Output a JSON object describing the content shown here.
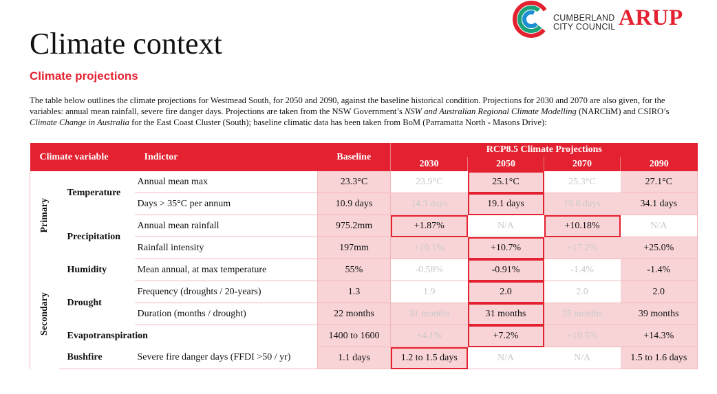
{
  "header": {
    "title": "Climate context",
    "subtitle": "Climate projections",
    "council_line1": "CUMBERLAND",
    "council_line2": "CITY COUNCIL",
    "arup": "ARUP"
  },
  "intro": {
    "p1": "The table below outlines the climate projections for Westmead South, for 2050 and 2090, against the baseline historical condition. Projections for 2030 and 2070 are also given, for the variables: annual mean rainfall, severe fire danger days. Projections are taken from the NSW Government’s ",
    "i1": "NSW and Australian Regional Climate Modelling",
    "p2": " (NARCliM) and CSIRO’s ",
    "i2": "Climate Change in Australia",
    "p3": " for the East Coast Cluster (South); baseline climatic data has been taken from BoM (Parramatta North - Masons Drive):"
  },
  "colors": {
    "accent": "#e32130",
    "pink": "#f8d4d7"
  },
  "table": {
    "headers": {
      "variable": "Climate variable",
      "indicator": "Indictor",
      "baseline": "Baseline",
      "rcp": "RCP8.5 Climate Projections",
      "y2030": "2030",
      "y2050": "2050",
      "y2070": "2070",
      "y2090": "2090"
    },
    "categories": {
      "primary": "Primary",
      "secondary": "Secondary"
    },
    "variables": {
      "temperature": "Temperature",
      "precipitation": "Precipitation",
      "humidity": "Humidity",
      "drought": "Drought",
      "evapotranspiration": "Evapotranspiration",
      "bushfire": "Bushfire"
    },
    "rows": [
      {
        "indicator": "Annual mean max",
        "baseline": "23.3°C",
        "y2030": "23.9°C",
        "y2050": "25.1°C",
        "y2070": "25.3°C",
        "y2090": "27.1°C"
      },
      {
        "indicator": "Days > 35°C per annum",
        "baseline": "10.9 days",
        "y2030": "14.3 days",
        "y2050": "19.1 days",
        "y2070": "19.8 days",
        "y2090": "34.1 days"
      },
      {
        "indicator": "Annual mean rainfall",
        "baseline": "975.2mm",
        "y2030": "+1.87%",
        "y2050": "N/A",
        "y2070": "+10.18%",
        "y2090": "N/A"
      },
      {
        "indicator": "Rainfall intensity",
        "baseline": "197mm",
        "y2030": "+10.1%",
        "y2050": "+10.7%",
        "y2070": "+17.2%",
        "y2090": "+25.0%"
      },
      {
        "indicator": "Mean annual, at max temperature",
        "baseline": "55%",
        "y2030": "-0.58%",
        "y2050": "-0.91%",
        "y2070": "-1.4%",
        "y2090": "-1.4%"
      },
      {
        "indicator": "Frequency (droughts / 20-years)",
        "baseline": "1.3",
        "y2030": "1.9",
        "y2050": "2.0",
        "y2070": "2.0",
        "y2090": "2.0"
      },
      {
        "indicator": "Duration (months / drought)",
        "baseline": "22 months",
        "y2030": "31 months",
        "y2050": "31 months",
        "y2070": "35 months",
        "y2090": "39 months"
      },
      {
        "indicator": "",
        "baseline": "1400 to 1600",
        "y2030": "+4.1%",
        "y2050": "+7.2%",
        "y2070": "+10.5%",
        "y2090": "+14.3%"
      },
      {
        "indicator": "Severe fire danger days (FFDI >50 / yr)",
        "baseline": "1.1 days",
        "y2030": "1.2 to 1.5 days",
        "y2050": "N/A",
        "y2070": "N/A",
        "y2090": "1.5 to 1.6 days"
      }
    ]
  }
}
